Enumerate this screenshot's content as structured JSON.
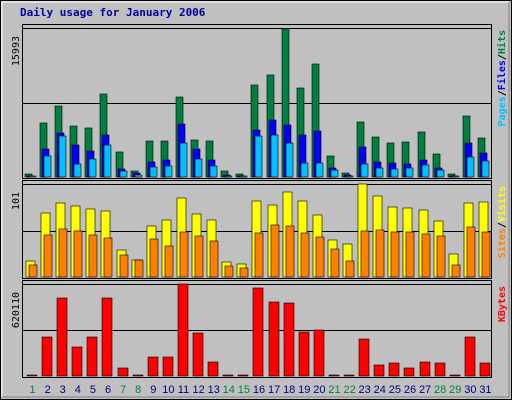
{
  "title": "Daily usage for January 2006",
  "colors": {
    "hits": "#008040",
    "files": "#0000ff",
    "pages": "#00c0ff",
    "visits": "#ffff00",
    "sites": "#ff8000",
    "kbytes": "#ff0000",
    "weekday_label": "#000080",
    "weekend_label": "#008040",
    "panel_bg": "#c0c0c0",
    "outer_bg": "#c0c0c0"
  },
  "panel_labels": {
    "top": [
      {
        "text": "Pages",
        "color": "#00c0ff"
      },
      {
        "text": "/",
        "color": "#000000"
      },
      {
        "text": "Files",
        "color": "#0000ff"
      },
      {
        "text": "/",
        "color": "#000000"
      },
      {
        "text": "Hits",
        "color": "#008040"
      }
    ],
    "middle": [
      {
        "text": "Sites",
        "color": "#ff8000"
      },
      {
        "text": "/",
        "color": "#000000"
      },
      {
        "text": "Visits",
        "color": "#ffff00"
      }
    ],
    "bottom": [
      {
        "text": "KBytes",
        "color": "#ff0000"
      }
    ]
  },
  "chart_data": {
    "type": "bar",
    "title": "Daily usage for January 2006",
    "categories": [
      "1",
      "2",
      "3",
      "4",
      "5",
      "6",
      "7",
      "8",
      "9",
      "10",
      "11",
      "12",
      "13",
      "14",
      "15",
      "16",
      "17",
      "18",
      "19",
      "20",
      "21",
      "22",
      "23",
      "24",
      "25",
      "26",
      "27",
      "28",
      "29",
      "30",
      "31"
    ],
    "weekend_days": [
      "1",
      "7",
      "8",
      "14",
      "15",
      "21",
      "22",
      "28",
      "29"
    ],
    "panels": [
      {
        "name": "hits_files_pages",
        "max_label": "15993",
        "ylim": [
          0,
          15993
        ],
        "series": [
          {
            "name": "Hits",
            "values": [
              300,
              5800,
              7600,
              5500,
              5300,
              8900,
              2700,
              600,
              3900,
              3900,
              8600,
              4000,
              3900,
              600,
              300,
              9900,
              11000,
              15900,
              9600,
              12100,
              2300,
              400,
              5900,
              4300,
              3600,
              3800,
              4800,
              2500,
              300,
              6500,
              4200
            ]
          },
          {
            "name": "Files",
            "values": [
              150,
              3000,
              4700,
              3400,
              2800,
              4500,
              900,
              400,
              1600,
              1800,
              5700,
              3000,
              1800,
              200,
              150,
              5000,
              6100,
              5600,
              4500,
              4900,
              1000,
              200,
              3200,
              1600,
              1500,
              1400,
              1800,
              1000,
              150,
              3600,
              2600
            ]
          },
          {
            "name": "Pages",
            "values": [
              100,
              2300,
              4400,
              1400,
              1900,
              3400,
              600,
              250,
              1100,
              1200,
              3700,
              1900,
              1200,
              100,
              100,
              4400,
              4500,
              3600,
              1500,
              1500,
              700,
              100,
              1400,
              1000,
              900,
              1000,
              1300,
              700,
              100,
              2200,
              1700
            ]
          }
        ]
      },
      {
        "name": "visits_sites",
        "max_label": "101",
        "ylim": [
          0,
          101
        ],
        "series": [
          {
            "name": "Visits",
            "values": [
              17,
              69,
              80,
              77,
              74,
              72,
              29,
              19,
              55,
              62,
              86,
              68,
              62,
              16,
              14,
              82,
              78,
              92,
              83,
              67,
              40,
              36,
              101,
              88,
              76,
              75,
              73,
              61,
              25,
              80,
              81
            ]
          },
          {
            "name": "Sites",
            "values": [
              13,
              46,
              52,
              50,
              46,
              42,
              24,
              18,
              41,
              34,
              49,
              45,
              39,
              12,
              10,
              48,
              56,
              55,
              48,
              43,
              30,
              17,
              50,
              51,
              49,
              49,
              47,
              44,
              13,
              54,
              49
            ]
          }
        ]
      },
      {
        "name": "kbytes",
        "max_label": "620110",
        "ylim": [
          0,
          620110
        ],
        "series": [
          {
            "name": "KBytes",
            "values": [
              0,
              264000,
              529000,
              196000,
              264000,
              529000,
              54000,
              0,
              126000,
              130000,
              620000,
              293000,
              96000,
              0,
              0,
              596000,
              498000,
              493000,
              296000,
              308000,
              0,
              0,
              247000,
              77000,
              89000,
              56000,
              91000,
              89000,
              0,
              264000,
              89000
            ]
          }
        ]
      }
    ]
  }
}
